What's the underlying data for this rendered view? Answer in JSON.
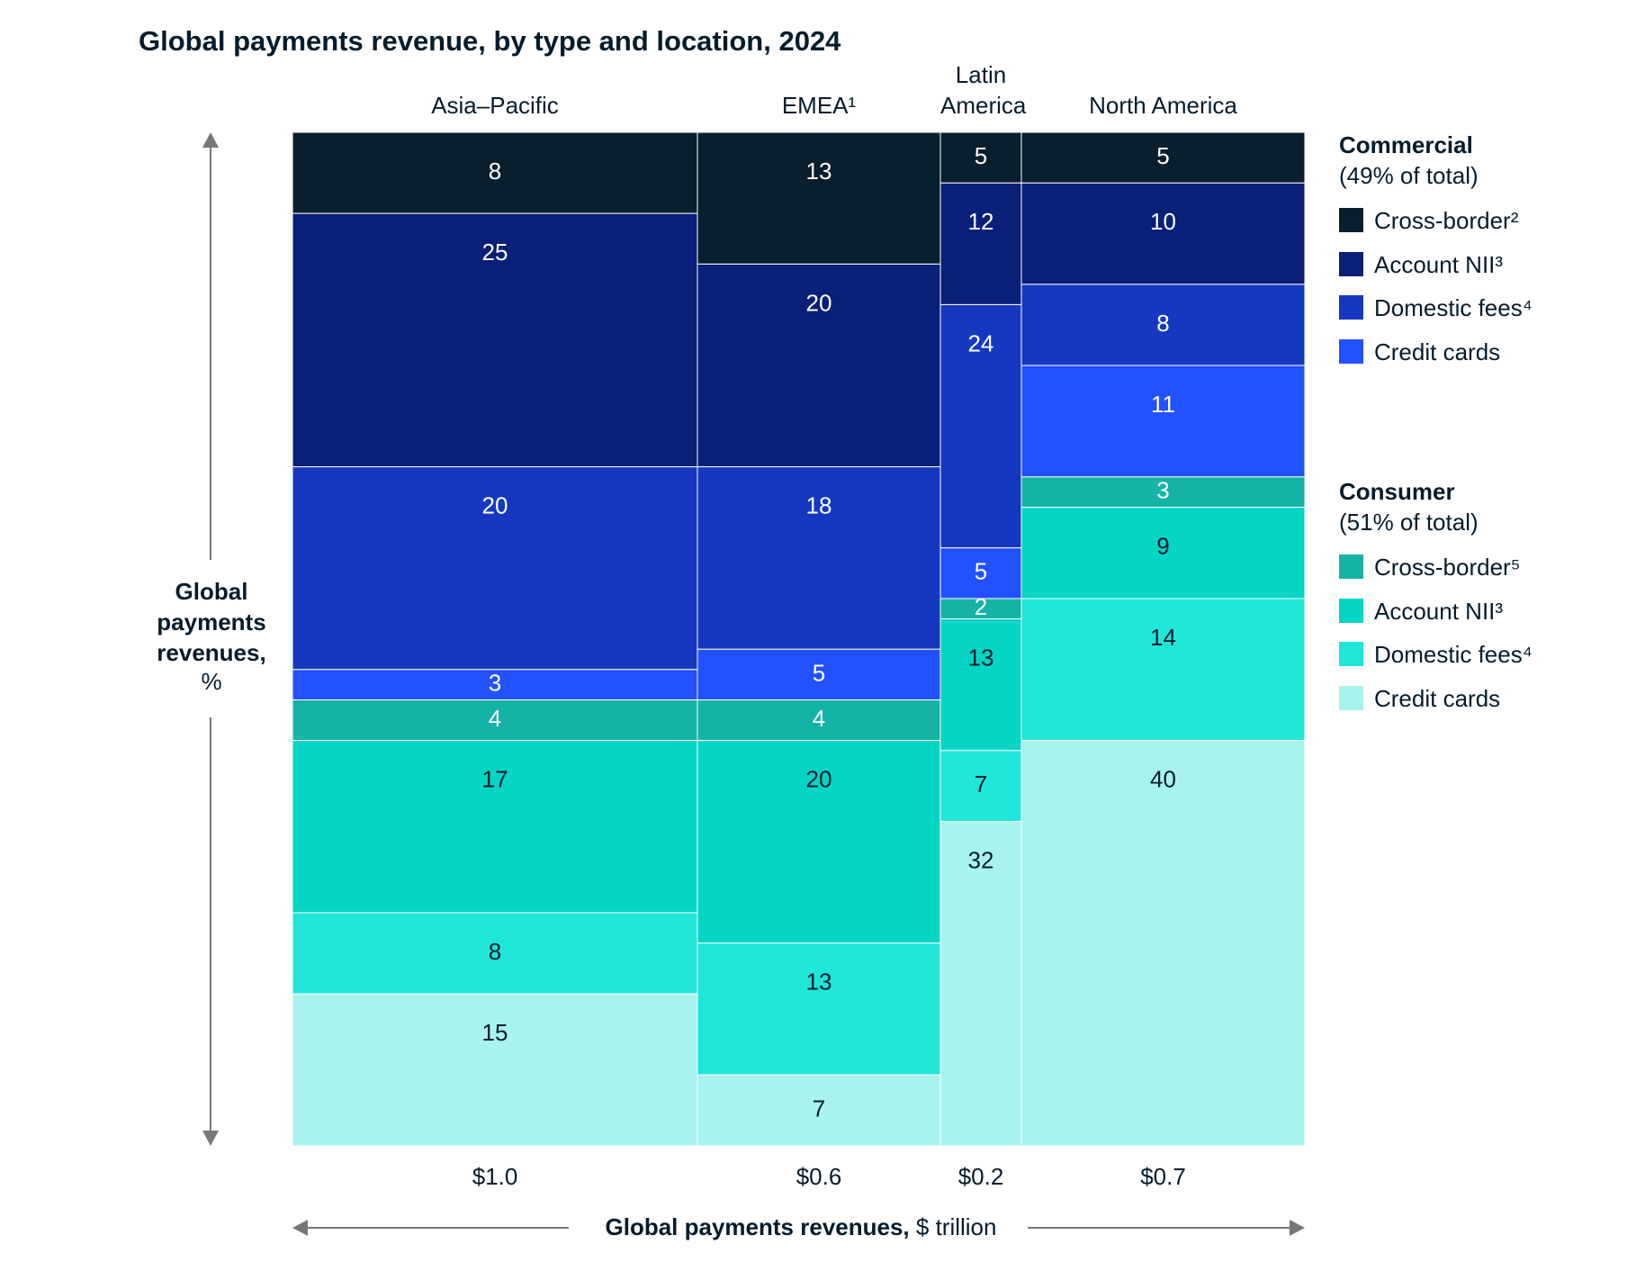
{
  "chart_data": {
    "type": "marimekko",
    "title": "Global payments revenue, by type and location, 2024",
    "y_label": "Global payments revenues,",
    "y_unit": "%",
    "x_label": "Global payments revenues,",
    "x_unit": "$ trillion",
    "categories": [
      "Asia–Pacific",
      "EMEA¹",
      "Latin America",
      "North America"
    ],
    "widths": [
      1.0,
      0.6,
      0.2,
      0.7
    ],
    "width_labels": [
      "$1.0",
      "$0.6",
      "$0.2",
      "$0.7"
    ],
    "series_groups": [
      {
        "name": "Commercial",
        "note": "(49% of total)",
        "series": [
          {
            "name": "Cross-border²",
            "color": "#0a1f2d",
            "values": [
              8,
              13,
              5,
              5
            ]
          },
          {
            "name": "Account NII³",
            "color": "#0a1f78",
            "values": [
              25,
              20,
              12,
              10
            ]
          },
          {
            "name": "Domestic fees⁴",
            "color": "#1638c0",
            "values": [
              20,
              18,
              24,
              8
            ]
          },
          {
            "name": "Credit cards",
            "color": "#2251ff",
            "values": [
              3,
              5,
              5,
              11
            ]
          }
        ]
      },
      {
        "name": "Consumer",
        "note": "(51% of total)",
        "series": [
          {
            "name": "Cross-border⁵",
            "color": "#14b3a5",
            "values": [
              4,
              4,
              2,
              3
            ]
          },
          {
            "name": "Account NII³",
            "color": "#05d5c5",
            "values": [
              17,
              20,
              13,
              9
            ]
          },
          {
            "name": "Domestic fees⁴",
            "color": "#20e6da",
            "values": [
              8,
              13,
              7,
              14
            ]
          },
          {
            "name": "Credit cards",
            "color": "#a8f3ee",
            "values": [
              15,
              7,
              32,
              40
            ]
          }
        ]
      }
    ]
  }
}
